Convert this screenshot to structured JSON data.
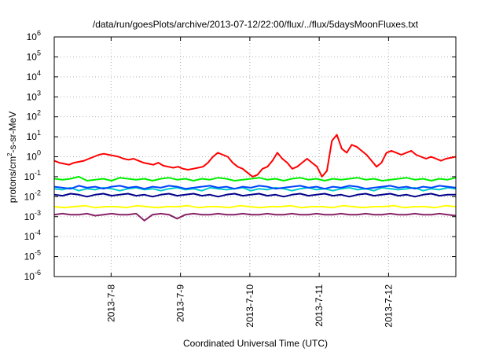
{
  "chart_data": {
    "type": "line",
    "title": "/data/run/goesPlots/archive/2013-07-12/22:00/flux/../flux/5daysMoonFluxes.txt",
    "xlabel": "Coordinated Universal Time (UTC)",
    "ylabel": {
      "prefix": "protons/cm",
      "sup": "2",
      "suffix": "-s-sr-MeV"
    },
    "y_scale": "log",
    "ylim_exponents": [
      -6,
      6
    ],
    "y_ticks": [
      {
        "base": "10",
        "exp": "-6"
      },
      {
        "base": "10",
        "exp": "-5"
      },
      {
        "base": "10",
        "exp": "-4"
      },
      {
        "base": "10",
        "exp": "-3"
      },
      {
        "base": "10",
        "exp": "-2"
      },
      {
        "base": "10",
        "exp": "-1"
      },
      {
        "base": "10",
        "exp": "0"
      },
      {
        "base": "10",
        "exp": "1"
      },
      {
        "base": "10",
        "exp": "2"
      },
      {
        "base": "10",
        "exp": "3"
      },
      {
        "base": "10",
        "exp": "4"
      },
      {
        "base": "10",
        "exp": "5"
      },
      {
        "base": "10",
        "exp": "6"
      }
    ],
    "x_days": [
      7.18,
      12.97
    ],
    "x_ticks": [
      {
        "day": 8,
        "label": "2013-7-8"
      },
      {
        "day": 9,
        "label": "2013-7-9"
      },
      {
        "day": 10,
        "label": "2013-7-10"
      },
      {
        "day": 11,
        "label": "2013-7-11"
      },
      {
        "day": 12,
        "label": "2013-7-12"
      }
    ],
    "grid": true,
    "series": [
      {
        "color": "#ff0000",
        "log_values": [
          -0.2,
          -0.3,
          -0.35,
          -0.4,
          -0.3,
          -0.25,
          -0.2,
          -0.1,
          0.0,
          0.1,
          0.15,
          0.1,
          0.05,
          0.0,
          -0.1,
          -0.15,
          -0.1,
          -0.2,
          -0.3,
          -0.35,
          -0.4,
          -0.3,
          -0.45,
          -0.5,
          -0.55,
          -0.5,
          -0.6,
          -0.65,
          -0.6,
          -0.55,
          -0.5,
          -0.3,
          0.0,
          0.2,
          0.1,
          0.0,
          -0.3,
          -0.5,
          -0.6,
          -0.8,
          -1.0,
          -0.9,
          -0.6,
          -0.5,
          -0.2,
          0.2,
          -0.1,
          -0.3,
          -0.6,
          -0.5,
          -0.3,
          -0.1,
          -0.3,
          -0.5,
          -1.0,
          -0.7,
          0.8,
          1.1,
          0.4,
          0.2,
          0.6,
          0.5,
          0.3,
          0.1,
          -0.2,
          -0.5,
          -0.3,
          0.2,
          0.3,
          0.2,
          0.1,
          0.2,
          0.3,
          0.1,
          0.0,
          -0.1,
          0.0,
          -0.1,
          -0.2,
          -0.1,
          -0.05,
          0.0
        ]
      },
      {
        "color": "#00ee00",
        "log_values": [
          -1.1,
          -1.15,
          -1.1,
          -1.0,
          -1.2,
          -1.15,
          -1.1,
          -1.2,
          -1.05,
          -1.1,
          -1.15,
          -1.1,
          -1.2,
          -1.1,
          -1.05,
          -1.15,
          -1.1,
          -1.2,
          -1.1,
          -1.15,
          -1.05,
          -1.1,
          -1.2,
          -1.15,
          -1.1,
          -1.05,
          -1.15,
          -1.1,
          -1.2,
          -1.1,
          -1.05,
          -1.15,
          -1.1,
          -1.2,
          -1.1,
          -1.15,
          -1.1,
          -1.05,
          -1.15,
          -1.1,
          -1.2,
          -1.15,
          -1.1,
          -1.05,
          -1.15,
          -1.1,
          -1.2,
          -1.1,
          -1.15,
          -1.05
        ]
      },
      {
        "color": "#00cccc",
        "log_values": [
          -1.6,
          -1.65,
          -1.55,
          -1.7,
          -1.6,
          -1.65,
          -1.55,
          -1.6,
          -1.7,
          -1.6,
          -1.55,
          -1.65,
          -1.6,
          -1.7,
          -1.6,
          -1.55,
          -1.65,
          -1.6,
          -1.7,
          -1.55,
          -1.6,
          -1.65,
          -1.6,
          -1.55,
          -1.7,
          -1.6,
          -1.65,
          -1.55,
          -1.6,
          -1.7,
          -1.6,
          -1.55,
          -1.65,
          -1.6,
          -1.7,
          -1.6,
          -1.55,
          -1.65,
          -1.6,
          -1.7,
          -1.55,
          -1.6,
          -1.65,
          -1.6,
          -1.55,
          -1.7,
          -1.6,
          -1.65,
          -1.55,
          -1.6
        ]
      },
      {
        "color": "#0044ff",
        "log_values": [
          -1.5,
          -1.55,
          -1.6,
          -1.45,
          -1.55,
          -1.5,
          -1.6,
          -1.5,
          -1.45,
          -1.55,
          -1.5,
          -1.6,
          -1.5,
          -1.55,
          -1.45,
          -1.5,
          -1.6,
          -1.55,
          -1.5,
          -1.45,
          -1.55,
          -1.5,
          -1.6,
          -1.5,
          -1.55,
          -1.45,
          -1.5,
          -1.6,
          -1.55,
          -1.5,
          -1.45,
          -1.55,
          -1.5,
          -1.6,
          -1.5,
          -1.55,
          -1.45,
          -1.5,
          -1.6,
          -1.55,
          -1.5,
          -1.45,
          -1.55,
          -1.5,
          -1.6,
          -1.5,
          -1.55,
          -1.45,
          -1.5,
          -1.55
        ]
      },
      {
        "color": "#00008b",
        "log_values": [
          -1.9,
          -1.95,
          -1.85,
          -1.9,
          -2.0,
          -1.9,
          -1.85,
          -1.95,
          -1.9,
          -1.85,
          -1.95,
          -1.9,
          -2.0,
          -1.9,
          -1.85,
          -1.95,
          -1.9,
          -1.85,
          -1.95,
          -1.9,
          -2.0,
          -1.9,
          -1.85,
          -1.95,
          -1.9,
          -1.85,
          -1.95,
          -1.9,
          -2.0,
          -1.9,
          -1.85,
          -1.95,
          -1.9,
          -1.85,
          -1.95,
          -1.9,
          -2.0,
          -1.9,
          -1.85,
          -1.95,
          -1.9,
          -1.85,
          -1.95,
          -1.9,
          -2.0,
          -1.9,
          -1.85,
          -1.95,
          -1.9,
          -1.9
        ]
      },
      {
        "color": "#ffff00",
        "log_values": [
          -2.5,
          -2.55,
          -2.5,
          -2.45,
          -2.55,
          -2.5,
          -2.5,
          -2.55,
          -2.45,
          -2.5,
          -2.55,
          -2.5,
          -2.5,
          -2.45,
          -2.55,
          -2.5,
          -2.5,
          -2.55,
          -2.45,
          -2.5,
          -2.55,
          -2.5,
          -2.5,
          -2.45,
          -2.55,
          -2.5,
          -2.5,
          -2.55,
          -2.45,
          -2.5,
          -2.55,
          -2.5,
          -2.5,
          -2.45,
          -2.55,
          -2.5,
          -2.5,
          -2.55,
          -2.45,
          -2.5
        ]
      },
      {
        "color": "#882266",
        "log_values": [
          -2.9,
          -2.85,
          -2.9,
          -2.9,
          -2.85,
          -2.95,
          -2.9,
          -2.85,
          -2.9,
          -2.9,
          -2.85,
          -3.2,
          -2.9,
          -2.85,
          -2.9,
          -3.1,
          -2.9,
          -2.85,
          -2.9,
          -2.9,
          -2.85,
          -2.9,
          -2.9,
          -2.85,
          -2.9,
          -2.9,
          -2.85,
          -2.9,
          -2.9,
          -2.85,
          -2.9,
          -2.9,
          -2.85,
          -2.9,
          -2.9,
          -2.85,
          -2.9,
          -2.9,
          -2.85,
          -2.9,
          -2.9,
          -2.85,
          -2.9,
          -2.9,
          -2.85,
          -2.9,
          -2.9,
          -2.85,
          -2.9,
          -2.95
        ]
      }
    ]
  }
}
